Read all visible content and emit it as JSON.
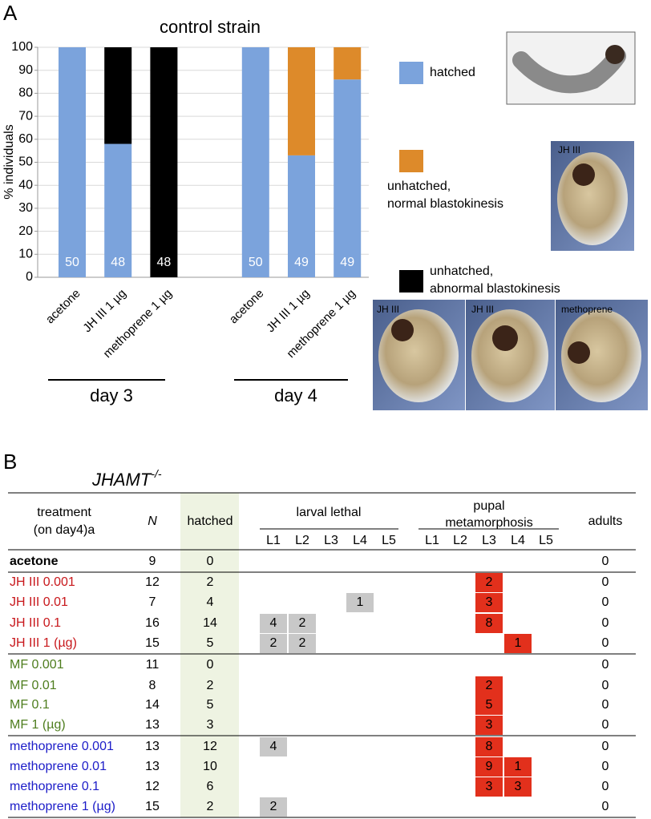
{
  "panels": {
    "a": "A",
    "b": "B"
  },
  "chart_data": {
    "type": "bar",
    "stacked": true,
    "title": "control strain",
    "y_label": "% individuals",
    "categories": [
      "acetone",
      "JH III 1 µg",
      "methoprene 1 µg",
      null,
      "acetone",
      "JH III 1 µg",
      "methoprene 1 µg"
    ],
    "series": [
      {
        "name": "hatched",
        "color": "#7ba3dc",
        "values": [
          100,
          58,
          0,
          null,
          100,
          53,
          86
        ]
      },
      {
        "name": "unhatched,\nnormal blastokinesis",
        "color": "#dd8a2a",
        "values": [
          0,
          0,
          0,
          null,
          0,
          47,
          14
        ]
      },
      {
        "name": "unhatched,\nabnormal blastokinesis",
        "color": "#000000",
        "values": [
          0,
          42,
          100,
          null,
          0,
          0,
          0
        ]
      }
    ],
    "n_labels": [
      50,
      48,
      48,
      null,
      50,
      49,
      49
    ],
    "groups": [
      "day 3",
      "day 4"
    ],
    "ylim": [
      0,
      100
    ],
    "yticks": [
      0,
      10,
      20,
      30,
      40,
      50,
      60,
      70,
      80,
      90,
      100
    ],
    "grid": true
  },
  "photos": [
    "JH III",
    "JH III",
    "JH III",
    "methoprene"
  ],
  "table": {
    "genotype": "JHAMT",
    "genotype_sup": "-/-",
    "columns": {
      "treatment": [
        "treatment",
        "(on day4)a"
      ],
      "n": "N",
      "hatched": "hatched",
      "larval": "larval lethal",
      "pupal": [
        "pupal",
        "metamorphosis"
      ],
      "adults": "adults",
      "stages": [
        "L1",
        "L2",
        "L3",
        "L4",
        "L5"
      ]
    },
    "larval_color": "#c8c8c8",
    "pupal_color": "#e2301c",
    "hatched_color": "#eef3e2",
    "rows": [
      {
        "treatment": "acetone",
        "color": "#000000",
        "bold": true,
        "n": 9,
        "hatched": 0,
        "larval": [
          null,
          null,
          null,
          null,
          null
        ],
        "pupal": [
          null,
          null,
          null,
          null,
          null
        ],
        "adults": 0
      },
      {
        "treatment": "JH III 0.001",
        "color": "#c8181c",
        "n": 12,
        "hatched": 2,
        "larval": [
          null,
          null,
          null,
          null,
          null
        ],
        "pupal": [
          null,
          null,
          2,
          null,
          null
        ],
        "adults": 0
      },
      {
        "treatment": "JH III 0.01",
        "color": "#c8181c",
        "n": 7,
        "hatched": 4,
        "larval": [
          null,
          null,
          null,
          1,
          null
        ],
        "pupal": [
          null,
          null,
          3,
          null,
          null
        ],
        "adults": 0
      },
      {
        "treatment": "JH III 0.1",
        "color": "#c8181c",
        "n": 16,
        "hatched": 14,
        "larval": [
          4,
          2,
          null,
          null,
          null
        ],
        "pupal": [
          null,
          null,
          8,
          null,
          null
        ],
        "adults": 0
      },
      {
        "treatment": "JH III 1 (µg)",
        "color": "#c8181c",
        "n": 15,
        "hatched": 5,
        "larval": [
          2,
          2,
          null,
          null,
          null
        ],
        "pupal": [
          null,
          null,
          null,
          1,
          null
        ],
        "adults": 0
      },
      {
        "treatment": "MF 0.001",
        "color": "#4e7d1e",
        "n": 11,
        "hatched": 0,
        "larval": [
          null,
          null,
          null,
          null,
          null
        ],
        "pupal": [
          null,
          null,
          null,
          null,
          null
        ],
        "adults": 0
      },
      {
        "treatment": "MF 0.01",
        "color": "#4e7d1e",
        "n": 8,
        "hatched": 2,
        "larval": [
          null,
          null,
          null,
          null,
          null
        ],
        "pupal": [
          null,
          null,
          2,
          null,
          null
        ],
        "adults": 0
      },
      {
        "treatment": "MF 0.1",
        "color": "#4e7d1e",
        "n": 14,
        "hatched": 5,
        "larval": [
          null,
          null,
          null,
          null,
          null
        ],
        "pupal": [
          null,
          null,
          5,
          null,
          null
        ],
        "adults": 0
      },
      {
        "treatment": "MF 1 (µg)",
        "color": "#4e7d1e",
        "n": 13,
        "hatched": 3,
        "larval": [
          null,
          null,
          null,
          null,
          null
        ],
        "pupal": [
          null,
          null,
          3,
          null,
          null
        ],
        "adults": 0
      },
      {
        "treatment": "methoprene 0.001",
        "color": "#1c1cc8",
        "n": 13,
        "hatched": 12,
        "larval": [
          4,
          null,
          null,
          null,
          null
        ],
        "pupal": [
          null,
          null,
          8,
          null,
          null
        ],
        "adults": 0
      },
      {
        "treatment": "methoprene 0.01",
        "color": "#1c1cc8",
        "n": 13,
        "hatched": 10,
        "larval": [
          null,
          null,
          null,
          null,
          null
        ],
        "pupal": [
          null,
          null,
          9,
          1,
          null
        ],
        "adults": 0
      },
      {
        "treatment": "methoprene 0.1",
        "color": "#1c1cc8",
        "n": 12,
        "hatched": 6,
        "larval": [
          null,
          null,
          null,
          null,
          null
        ],
        "pupal": [
          null,
          null,
          3,
          3,
          null
        ],
        "adults": 0
      },
      {
        "treatment": "methoprene 1 (µg)",
        "color": "#1c1cc8",
        "n": 15,
        "hatched": 2,
        "larval": [
          2,
          null,
          null,
          null,
          null
        ],
        "pupal": [
          null,
          null,
          null,
          null,
          null
        ],
        "adults": 0
      }
    ]
  }
}
